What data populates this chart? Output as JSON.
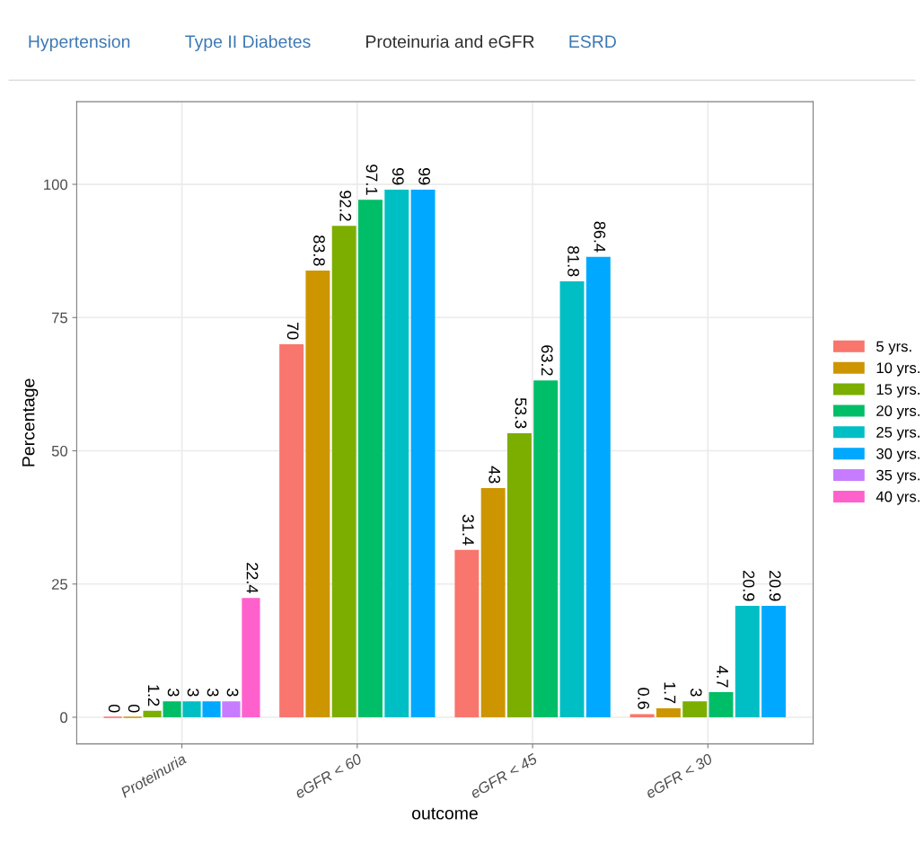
{
  "chart_data": {
    "type": "bar",
    "annotations": [
      "Hypertension",
      "Type II Diabetes",
      "Proteinuria and eGFR",
      "ESRD"
    ],
    "xlabel": "outcome",
    "ylabel": "Percentage",
    "categories": [
      "Proteinuria",
      "eGFR < 60",
      "eGFR < 45",
      "eGFR < 30"
    ],
    "series": [
      {
        "name": "5 yrs.",
        "color": "#f8766d",
        "values": [
          0,
          70,
          31.4,
          0.6
        ]
      },
      {
        "name": "10 yrs.",
        "color": "#cd9600",
        "values": [
          0,
          83.8,
          43,
          1.7
        ]
      },
      {
        "name": "15 yrs.",
        "color": "#7cae00",
        "values": [
          1.2,
          92.2,
          53.3,
          3
        ]
      },
      {
        "name": "20 yrs.",
        "color": "#00be67",
        "values": [
          3,
          97.1,
          63.2,
          4.7
        ]
      },
      {
        "name": "25 yrs.",
        "color": "#00bfc4",
        "values": [
          3,
          99,
          81.8,
          20.9
        ]
      },
      {
        "name": "30 yrs.",
        "color": "#00a9ff",
        "values": [
          3,
          99,
          86.4,
          20.9
        ]
      },
      {
        "name": "35 yrs.",
        "color": "#c77cff",
        "values": [
          3,
          null,
          null,
          null
        ]
      },
      {
        "name": "40 yrs.",
        "color": "#ff61cc",
        "values": [
          22.4,
          null,
          null,
          null
        ]
      }
    ],
    "ylim": [
      -5,
      115.5
    ],
    "yticks": [
      0,
      25,
      50,
      75,
      100
    ],
    "grid": true,
    "legend": "right",
    "data_labels": true
  }
}
